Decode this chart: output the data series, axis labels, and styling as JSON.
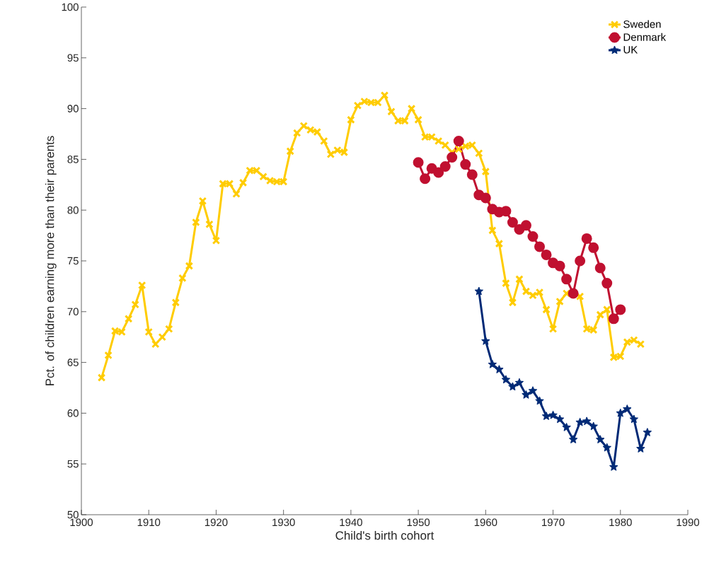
{
  "chart_data": {
    "type": "line",
    "xlabel": "Child's birth cohort",
    "ylabel": "Pct. of children earning more than their parents",
    "xlim": [
      1900,
      1990
    ],
    "xticks": [
      1900,
      1910,
      1920,
      1930,
      1940,
      1950,
      1960,
      1970,
      1980,
      1990
    ],
    "ylim": [
      50,
      100
    ],
    "yticks": [
      50,
      55,
      60,
      65,
      70,
      75,
      80,
      85,
      90,
      95,
      100
    ],
    "legend": "top right",
    "line_style": "solid",
    "series": [
      {
        "name": "Sweden",
        "color": "#ffcc00",
        "marker": "cross",
        "x": [
          1903,
          1904,
          1905,
          1906,
          1907,
          1908,
          1909,
          1910,
          1911,
          1912,
          1913,
          1914,
          1915,
          1916,
          1917,
          1918,
          1919,
          1920,
          1921,
          1922,
          1923,
          1924,
          1925,
          1926,
          1927,
          1928,
          1929,
          1930,
          1931,
          1932,
          1933,
          1934,
          1935,
          1936,
          1937,
          1938,
          1939,
          1940,
          1941,
          1942,
          1943,
          1944,
          1945,
          1946,
          1947,
          1948,
          1949,
          1950,
          1951,
          1952,
          1953,
          1954,
          1955,
          1956,
          1957,
          1958,
          1959,
          1960,
          1961,
          1962,
          1963,
          1964,
          1965,
          1966,
          1967,
          1968,
          1969,
          1970,
          1971,
          1972,
          1973,
          1974,
          1975,
          1976,
          1977,
          1978,
          1979,
          1980,
          1981,
          1982,
          1983
        ],
        "values": [
          63.5,
          65.7,
          68.1,
          68.0,
          69.3,
          70.7,
          72.6,
          68.0,
          66.8,
          67.5,
          68.3,
          70.9,
          73.3,
          74.5,
          78.8,
          80.9,
          78.6,
          77.0,
          82.6,
          82.6,
          81.6,
          82.7,
          83.9,
          83.9,
          83.3,
          82.9,
          82.8,
          82.8,
          85.8,
          87.6,
          88.3,
          87.9,
          87.7,
          86.8,
          85.5,
          85.9,
          85.7,
          88.9,
          90.3,
          90.7,
          90.6,
          90.6,
          91.3,
          89.7,
          88.8,
          88.8,
          90.0,
          88.9,
          87.2,
          87.2,
          86.8,
          86.4,
          85.7,
          86.0,
          86.3,
          86.4,
          85.6,
          83.8,
          78.0,
          76.7,
          72.8,
          70.9,
          73.2,
          72.0,
          71.6,
          71.9,
          70.2,
          68.3,
          71.0,
          71.8,
          71.8,
          71.5,
          68.3,
          68.2,
          69.7,
          70.2,
          65.5,
          65.6,
          67.0,
          67.2,
          66.8
        ]
      },
      {
        "name": "Denmark",
        "color": "#c01030",
        "marker": "circle",
        "x": [
          1950,
          1951,
          1952,
          1953,
          1954,
          1955,
          1956,
          1957,
          1958,
          1959,
          1960,
          1961,
          1962,
          1963,
          1964,
          1965,
          1966,
          1967,
          1968,
          1969,
          1970,
          1971,
          1972,
          1973,
          1974,
          1975,
          1976,
          1977,
          1978,
          1979,
          1980
        ],
        "values": [
          84.7,
          83.1,
          84.1,
          83.7,
          84.3,
          85.2,
          86.8,
          84.5,
          83.5,
          81.5,
          81.2,
          80.1,
          79.8,
          79.9,
          78.8,
          78.1,
          78.5,
          77.4,
          76.4,
          75.6,
          74.8,
          74.5,
          73.2,
          71.8,
          75.0,
          77.2,
          76.3,
          74.3,
          72.8,
          69.3,
          70.2
        ]
      },
      {
        "name": "UK",
        "color": "#002a76",
        "marker": "star",
        "x": [
          1959,
          1960,
          1961,
          1962,
          1963,
          1964,
          1965,
          1966,
          1967,
          1968,
          1969,
          1970,
          1971,
          1972,
          1973,
          1974,
          1975,
          1976,
          1977,
          1978,
          1979,
          1980,
          1981,
          1982,
          1983,
          1984
        ],
        "values": [
          72.0,
          67.1,
          64.8,
          64.3,
          63.3,
          62.6,
          63.0,
          61.8,
          62.2,
          61.2,
          59.7,
          59.8,
          59.4,
          58.6,
          57.4,
          59.1,
          59.2,
          58.7,
          57.4,
          56.6,
          54.7,
          60.0,
          60.4,
          59.4,
          56.5,
          58.1
        ]
      }
    ]
  }
}
